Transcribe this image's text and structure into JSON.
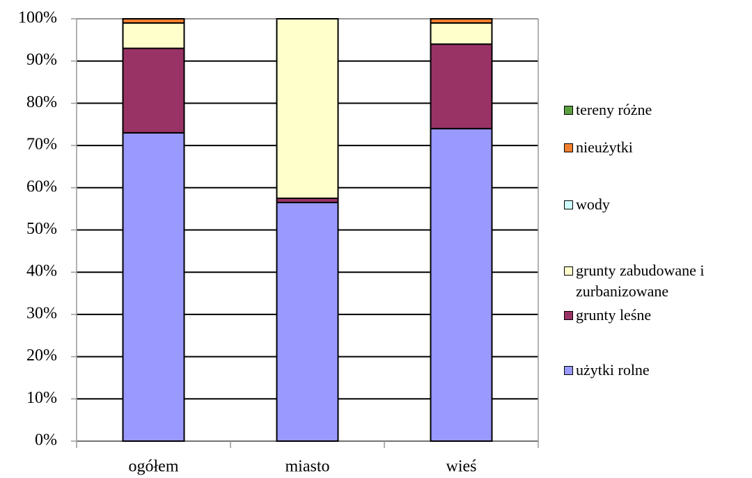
{
  "chart_data": {
    "type": "stacked_bar_100",
    "categories": [
      "ogółem",
      "miasto",
      "wieś"
    ],
    "series": [
      {
        "name": "użytki rolne",
        "color": "#9999ff",
        "values": [
          73,
          56.5,
          74
        ]
      },
      {
        "name": "grunty leśne",
        "color": "#993366",
        "values": [
          20,
          1,
          20
        ]
      },
      {
        "name": "grunty zabudowane i zurbanizowane",
        "color": "#ffffcc",
        "values": [
          6,
          42.5,
          5
        ]
      },
      {
        "name": "wody",
        "color": "#ccffff",
        "values": [
          0,
          0,
          0
        ]
      },
      {
        "name": "nieużytki",
        "color": "#f08030",
        "values": [
          1,
          0,
          1
        ]
      },
      {
        "name": "tereny różne",
        "color": "#5aa040",
        "values": [
          0,
          0,
          0
        ]
      }
    ],
    "ylim": [
      0,
      100
    ],
    "yticks": [
      {
        "value": 0,
        "label": "0%"
      },
      {
        "value": 10,
        "label": "10%"
      },
      {
        "value": 20,
        "label": "20%"
      },
      {
        "value": 30,
        "label": "30%"
      },
      {
        "value": 40,
        "label": "40%"
      },
      {
        "value": 50,
        "label": "50%"
      },
      {
        "value": 60,
        "label": "60%"
      },
      {
        "value": 70,
        "label": "70%"
      },
      {
        "value": 80,
        "label": "80%"
      },
      {
        "value": 90,
        "label": "90%"
      },
      {
        "value": 100,
        "label": "100%"
      }
    ],
    "grid": true,
    "legend": "right"
  }
}
